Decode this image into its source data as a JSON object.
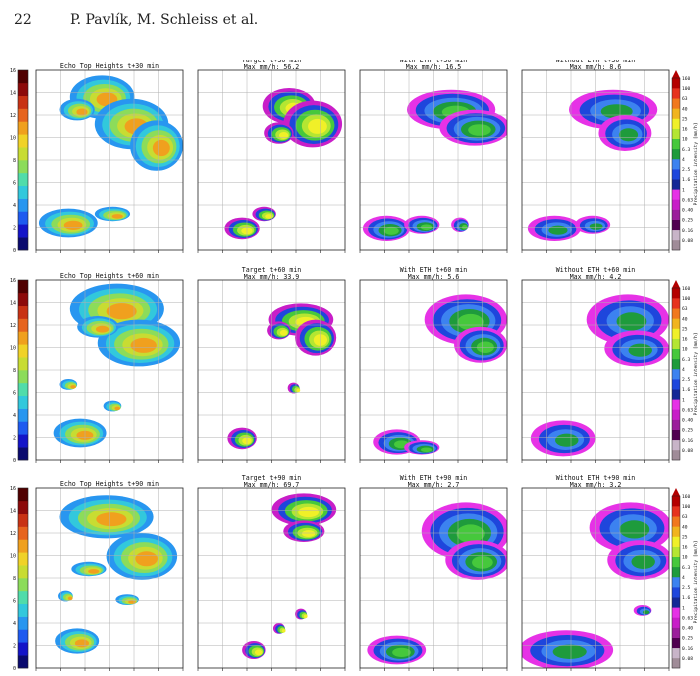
{
  "header": {
    "page_number": "22",
    "authors": "P. Pavlík, M. Schleiss et al."
  },
  "colors": {
    "eth_scale": [
      "#0a0a6e",
      "#1414c8",
      "#1e5af0",
      "#2896f0",
      "#32c8dc",
      "#50dcaa",
      "#8cdc5a",
      "#c8dc32",
      "#f0d228",
      "#f0a01e",
      "#e6641e",
      "#c83214",
      "#8c0a0a",
      "#500000"
    ],
    "precip_scale": [
      "#a08c98",
      "#c8b4c8",
      "#500050",
      "#9b1e9b",
      "#c81ec8",
      "#e632e6",
      "#142896",
      "#1e46dc",
      "#3c82f0",
      "#1e9b3c",
      "#46c83c",
      "#b4e632",
      "#f0f028",
      "#f0b41e",
      "#f0781e",
      "#e6321e",
      "#b40000"
    ],
    "grid": "#b0b0b0",
    "frame": "#222222"
  },
  "chart_data": {
    "type": "heatmap",
    "columns": [
      "Echo Top Heights",
      "Target",
      "With ETH",
      "Without ETH"
    ],
    "rows": [
      "t+30 min",
      "t+60 min",
      "t+90 min"
    ],
    "panels": [
      [
        {
          "title": "Echo Top Heights t+30 min",
          "subtitle": ""
        },
        {
          "title": "Target t+30 min",
          "subtitle": "Max mm/h: 56.2"
        },
        {
          "title": "With ETH t+30 min",
          "subtitle": "Max mm/h: 16.5"
        },
        {
          "title": "Without ETH t+30 min",
          "subtitle": "Max mm/h: 8.6"
        }
      ],
      [
        {
          "title": "Echo Top Heights t+60 min",
          "subtitle": ""
        },
        {
          "title": "Target t+60 min",
          "subtitle": "Max mm/h: 33.9"
        },
        {
          "title": "With ETH t+60 min",
          "subtitle": "Max mm/h: 5.6"
        },
        {
          "title": "Without ETH t+60 min",
          "subtitle": "Max mm/h: 4.2"
        }
      ],
      [
        {
          "title": "Echo Top Heights t+90 min",
          "subtitle": ""
        },
        {
          "title": "Target t+90 min",
          "subtitle": "Max mm/h: 69.7"
        },
        {
          "title": "With ETH t+90 min",
          "subtitle": "Max mm/h: 2.7"
        },
        {
          "title": "Without ETH t+90 min",
          "subtitle": "Max mm/h: 3.2"
        }
      ]
    ],
    "eth_colorbar": {
      "ticks": [
        "0",
        "2",
        "4",
        "6",
        "8",
        "10",
        "12",
        "14",
        "16"
      ],
      "range": [
        0,
        16
      ]
    },
    "precip_colorbar": {
      "label": "Precipitation intensity [mm/h]",
      "ticks": [
        "0.08",
        "0.16",
        "0.25",
        "0.40",
        "0.63",
        "1",
        "1.6",
        "2.5",
        "4",
        "6.3",
        "10",
        "16",
        "25",
        "40",
        "63",
        "100",
        "160"
      ]
    },
    "grid": true
  }
}
